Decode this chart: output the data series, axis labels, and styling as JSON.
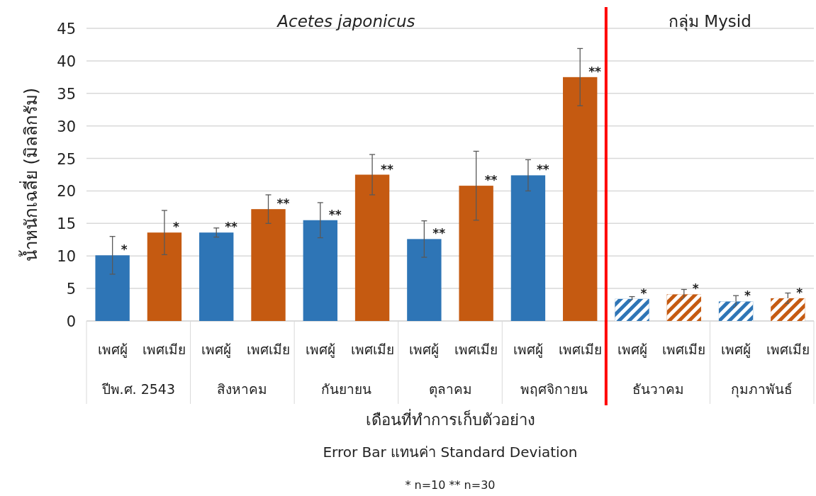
{
  "chart_data": {
    "type": "bar",
    "ylabel": "น้ำหนักเฉลี่ย (มิลลิกรัม)",
    "xlabel": "เดือนที่ทำการเก็บตัวอย่าง",
    "categories": [
      "ปีพ.ศ. 2543",
      "สิงหาคม",
      "กันยายน",
      "ตุลาคม",
      "พฤศจิกายน",
      "ธันวาคม",
      "กุมภาพันธ์"
    ],
    "series": [
      {
        "name": "เพศผู้",
        "color": "#2e75b6",
        "values": [
          10.1,
          13.6,
          15.5,
          12.6,
          22.4,
          3.4,
          3.0
        ],
        "errors": [
          2.9,
          0.7,
          2.7,
          2.8,
          2.4,
          0.35,
          0.9
        ],
        "value_labels": [
          "*",
          "**",
          "**",
          "**",
          "**",
          "*",
          "*"
        ]
      },
      {
        "name": "เพศเมีย",
        "color": "#c55a11",
        "values": [
          13.6,
          17.2,
          22.5,
          20.8,
          37.5,
          4.1,
          3.5
        ],
        "errors": [
          3.4,
          2.2,
          3.1,
          5.3,
          4.4,
          0.75,
          0.8
        ],
        "value_labels": [
          "*",
          "**",
          "**",
          "**",
          "**",
          "*",
          "*"
        ]
      }
    ],
    "ylim": [
      0,
      45
    ],
    "yticks": [
      0,
      5,
      10,
      15,
      20,
      25,
      30,
      35,
      40,
      45
    ],
    "grid": "y",
    "ref_lines": [
      {
        "axis": "x",
        "value": "ธันวาคม",
        "color": "#ff0000"
      }
    ],
    "annotations": [
      "Acetes japonicus",
      "กลุ่ม Mysid",
      "Error Bar แทนค่า Standard Deviation",
      "* n=10  ** n=30"
    ]
  }
}
